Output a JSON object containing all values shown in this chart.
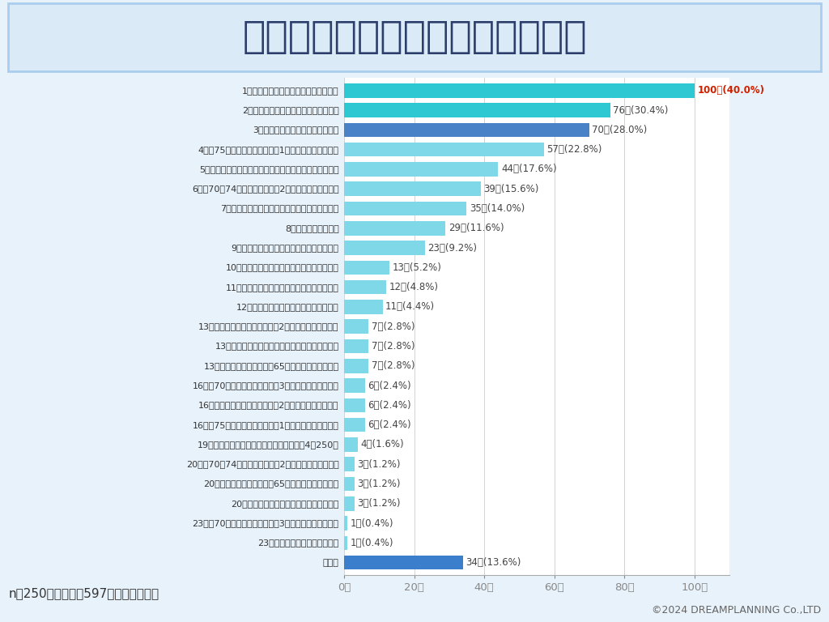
{
  "title": "日本の社会保障料をどうすべき？",
  "title_color": "#2c3e6b",
  "title_bg": "#daeaf7",
  "title_border": "#aaccee",
  "categories": [
    "1位：生活保護の不正受給を防止すべき",
    "2位：社会保険の不正受給を防止すべき",
    "3位：年金の不正受給を防止すべき",
    "4位：75歳以上の医療費負担（1割）を引き上げるべき",
    "5位：生活保護受給者に対する収入調査などを徹底すべき",
    "6位：70〜74歳の医療費負担（2割）を引き上げるべき",
    "7位：生活保護制度を見直し、予算を削減すべき",
    "8位：現状維持でよい",
    "9位：全世代の医療費負担を引き下げるべき",
    "10位：子育て支援に関する費用を削減すべき",
    "11位：全世代の医療費負担を引き上げるべき",
    "12位：年金の受給金額を引き上げるべき",
    "13位：未就学児の医療費負担（2割）を引き下げるべき",
    "13位：生活保護制度を見直し、予算を増額すべき",
    "13位：年金支給開始年齢（65歳）を引き上げるべき",
    "16位：70歳未満の医療費負担（3割）を引き上げるべき",
    "16位：未就学児の医療費負担（2割）を引き上げるべき",
    "16位：75歳以上の医療費負担（1割）を引き下げるべき",
    "19位：年金の受給金額を引き下げるべき　4／250名",
    "20位：70〜74歳の医療費負担（2割）を引き下げるべき",
    "20位：年金支給開始年齢（65歳）を引き下げるべき",
    "20位：年金保険料の拠出期間を延長すべき",
    "23位：70歳未満の医療費負担（3割）を引き下げるべき",
    "23位：介護給付費を削減すべき",
    "その他"
  ],
  "values": [
    100,
    76,
    70,
    57,
    44,
    39,
    35,
    29,
    23,
    13,
    12,
    11,
    7,
    7,
    7,
    6,
    6,
    6,
    4,
    3,
    3,
    3,
    1,
    1,
    34
  ],
  "labels": [
    "100人(40.0%)",
    "76人(30.4%)",
    "70人(28.0%)",
    "57人(22.8%)",
    "44人(17.6%)",
    "39人(15.6%)",
    "35人(14.0%)",
    "29人(11.6%)",
    "23人(9.2%)",
    "13人(5.2%)",
    "12人(4.8%)",
    "11人(4.4%)",
    "7人(2.8%)",
    "7人(2.8%)",
    "7人(2.8%)",
    "6人(2.4%)",
    "6人(2.4%)",
    "6人(2.4%)",
    "4人(1.6%)",
    "3人(1.2%)",
    "3人(1.2%)",
    "3人(1.2%)",
    "1人(0.4%)",
    "1人(0.4%)",
    "34人(13.6%)"
  ],
  "label_bold": [
    true,
    false,
    false,
    false,
    false,
    false,
    false,
    false,
    false,
    false,
    false,
    false,
    false,
    false,
    false,
    false,
    false,
    false,
    false,
    false,
    false,
    false,
    false,
    false,
    false
  ],
  "label_red": [
    true,
    false,
    false,
    false,
    false,
    false,
    false,
    false,
    false,
    false,
    false,
    false,
    false,
    false,
    false,
    false,
    false,
    false,
    false,
    false,
    false,
    false,
    false,
    false,
    false
  ],
  "bar_colors": [
    "#2ec8d2",
    "#2ec8d2",
    "#4a82c8",
    "#7ed8e8",
    "#7ed8e8",
    "#7ed8e8",
    "#7ed8e8",
    "#7ed8e8",
    "#7ed8e8",
    "#7ed8e8",
    "#7ed8e8",
    "#7ed8e8",
    "#7ed8e8",
    "#7ed8e8",
    "#7ed8e8",
    "#7ed8e8",
    "#7ed8e8",
    "#7ed8e8",
    "#7ed8e8",
    "#7ed8e8",
    "#7ed8e8",
    "#7ed8e8",
    "#7ed8e8",
    "#7ed8e8",
    "#3a7ecc"
  ],
  "xlabel_ticks": [
    "0人",
    "20人",
    "40人",
    "60人",
    "80人",
    "100人"
  ],
  "xlabel_values": [
    0,
    20,
    40,
    60,
    80,
    100
  ],
  "footnote": "n＝250　（回答数597・複数回答可）",
  "copyright": "©2024 DREAMPLANNING Co.,LTD",
  "bg_color": "#e8f2fa",
  "chart_bg": "#ffffff"
}
